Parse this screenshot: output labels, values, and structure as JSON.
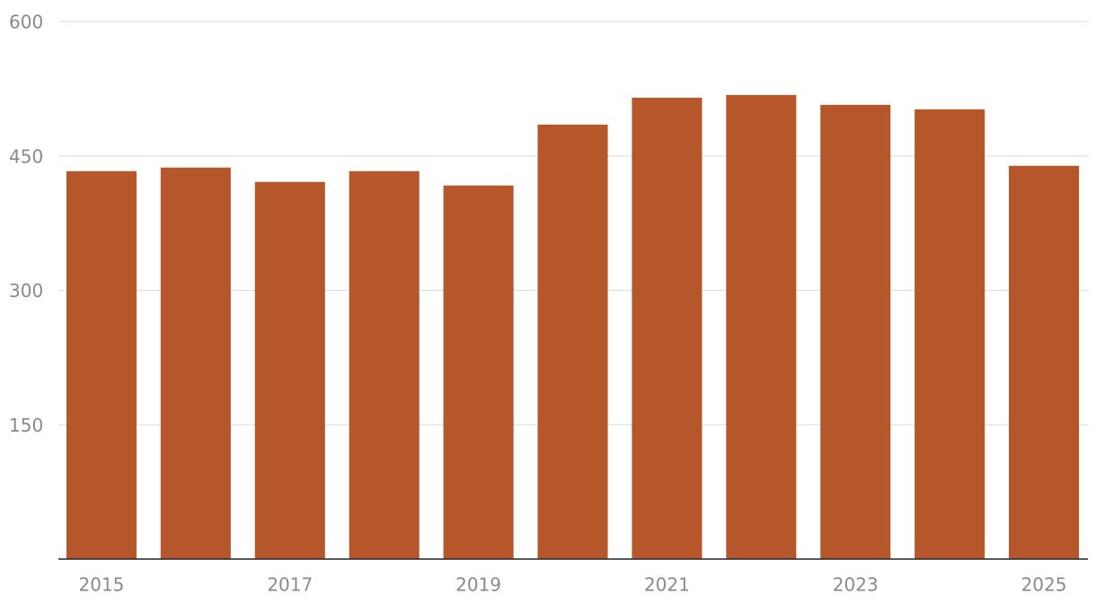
{
  "chart_data": {
    "type": "bar",
    "categories": [
      "2015",
      null,
      "2017",
      null,
      "2019",
      null,
      "2021",
      null,
      "2023",
      null,
      "2025"
    ],
    "values": [
      433,
      437,
      421,
      433,
      417,
      485,
      515,
      518,
      507,
      502,
      439
    ],
    "color": "#b5572b",
    "ylim": [
      0,
      600
    ],
    "yticks": [
      150,
      300,
      450,
      600
    ],
    "grid": true
  }
}
